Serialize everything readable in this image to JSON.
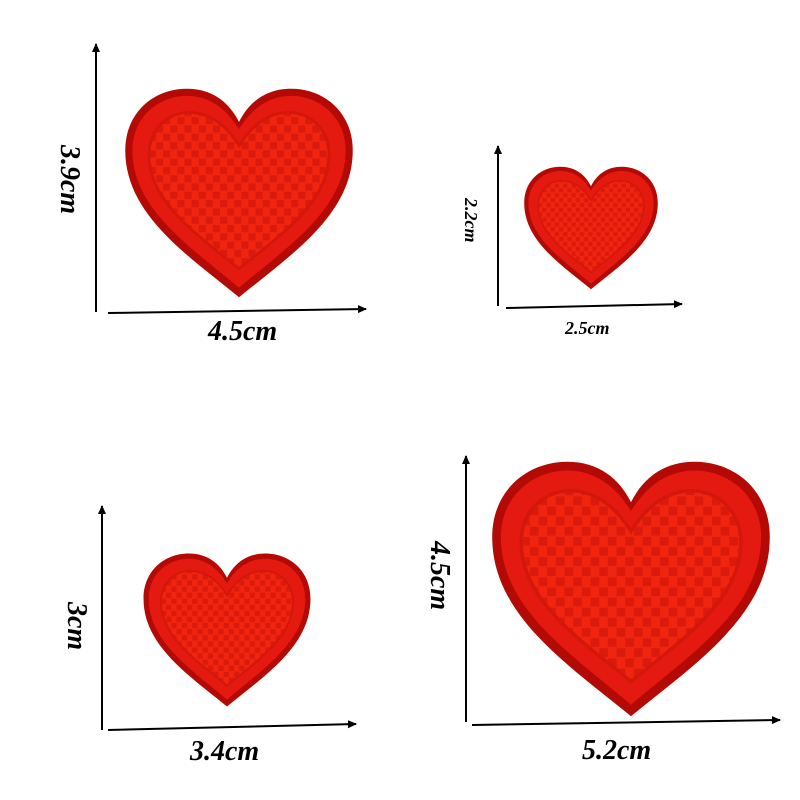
{
  "patches": [
    {
      "width_label": "4.5cm",
      "height_label": "3.9cm"
    },
    {
      "width_label": "2.5cm",
      "height_label": "2.2cm"
    },
    {
      "width_label": "3.4cm",
      "height_label": "3cm"
    },
    {
      "width_label": "5.2cm",
      "height_label": "4.5cm"
    }
  ],
  "colors": {
    "heart_rim": "#e4190f",
    "heart_edge": "#b30a05",
    "heart_fill": "#f0240f",
    "weave": "#c8120a",
    "arrow": "#000000",
    "background": "#ffffff"
  }
}
